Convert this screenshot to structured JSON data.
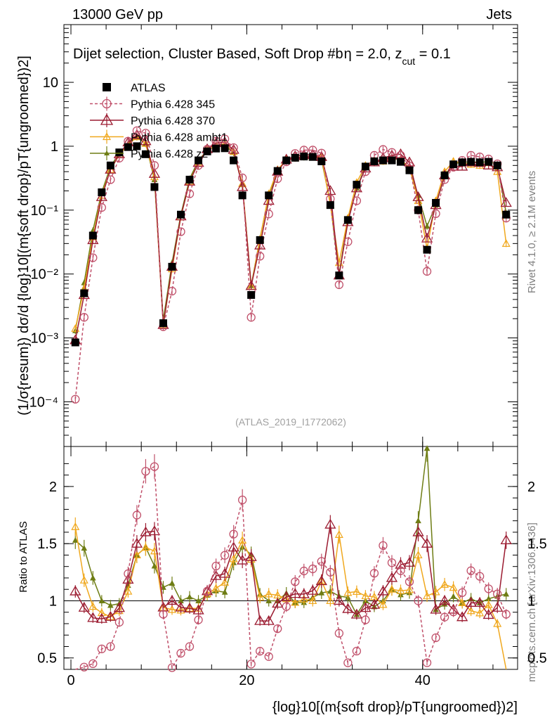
{
  "header": {
    "energy_label": "13000 GeV pp",
    "process_label": "Jets"
  },
  "side_labels": {
    "rivet": "Rivet 4.1.0, ≥ 2.1M events",
    "mcplots": "mcplots.cern.ch [arXiv:1306.3436]"
  },
  "chart_data": {
    "type": "line",
    "title": "Dijet selection, Cluster Based, Soft Drop #bη = 2.0, z_cut = 0.1",
    "title_main": "Dijet selection, Cluster Based, Soft Drop #b",
    "title_beta": "η = 2.0, z",
    "title_sub": "cut",
    "title_end": " = 0.1",
    "analysis_id": "(ATLAS_2019_I1772062)",
    "xlabel": "{log}10[(m{soft drop}/pT{ungroomed})2]",
    "ylabel": "(1/σ{resum}) dσ/d {log}10[(m{soft drop}/pT{ungroomed})2]",
    "ratio_ylabel": "Ratio to ATLAS",
    "main_yscale": "log",
    "main_ylim": [
      2e-05,
      80
    ],
    "main_yticks": [
      "10",
      "1",
      "10⁻¹",
      "10⁻²",
      "10⁻³",
      "10⁻⁴"
    ],
    "ratio_ylim": [
      0.4,
      2.35
    ],
    "ratio_yticks": [
      "2",
      "1.5",
      "1",
      "0.5"
    ],
    "xlim": [
      -0.8,
      50.8
    ],
    "xticks": [
      "0",
      "20",
      "40"
    ],
    "legend": [
      "ATLAS",
      "Pythia 6.428 345",
      "Pythia 6.428 370",
      "Pythia 6.428 ambt1",
      "Pythia 6.428 z2"
    ],
    "x": [
      0.5,
      1.5,
      2.5,
      3.5,
      4.5,
      5.5,
      6.5,
      7.5,
      8.5,
      9.5,
      10.5,
      11.5,
      12.5,
      13.5,
      14.5,
      15.5,
      16.5,
      17.5,
      18.5,
      19.5,
      20.5,
      21.5,
      22.5,
      23.5,
      24.5,
      25.5,
      26.5,
      27.5,
      28.5,
      29.5,
      30.5,
      31.5,
      32.5,
      33.5,
      34.5,
      35.5,
      36.5,
      37.5,
      38.5,
      39.5,
      40.5,
      41.5,
      42.5,
      43.5,
      44.5,
      45.5,
      46.5,
      47.5,
      48.5,
      49.5
    ],
    "series": [
      {
        "name": "ATLAS",
        "color": "#000000",
        "values": [
          0.00085,
          0.005,
          0.04,
          0.19,
          0.5,
          0.8,
          0.97,
          1.0,
          0.75,
          0.23,
          0.0017,
          0.013,
          0.085,
          0.3,
          0.6,
          0.83,
          0.92,
          0.93,
          0.6,
          0.17,
          0.0047,
          0.034,
          0.17,
          0.41,
          0.6,
          0.66,
          0.69,
          0.68,
          0.58,
          0.12,
          0.0095,
          0.07,
          0.25,
          0.48,
          0.58,
          0.6,
          0.6,
          0.57,
          0.42,
          0.1,
          0.024,
          0.13,
          0.35,
          0.52,
          0.56,
          0.57,
          0.56,
          0.57,
          0.5,
          0.085
        ]
      },
      {
        "name": "Pythia 6.428 345",
        "color": "#c0506a",
        "values": [
          0.00011,
          0.0021,
          0.018,
          0.11,
          0.3,
          0.65,
          1.2,
          1.75,
          1.6,
          0.5,
          0.0015,
          0.0054,
          0.046,
          0.18,
          0.5,
          0.9,
          1.2,
          1.3,
          0.95,
          0.32,
          0.0021,
          0.019,
          0.087,
          0.31,
          0.57,
          0.77,
          0.87,
          0.87,
          0.78,
          0.15,
          0.0068,
          0.032,
          0.14,
          0.4,
          0.72,
          0.89,
          0.8,
          0.72,
          0.49,
          0.1,
          0.011,
          0.088,
          0.3,
          0.47,
          0.6,
          0.72,
          0.68,
          0.63,
          0.53,
          0.075
        ]
      },
      {
        "name": "Pythia 6.428 370",
        "color": "#9b1b30",
        "values": [
          0.00092,
          0.0047,
          0.034,
          0.16,
          0.43,
          0.75,
          1.15,
          1.5,
          1.2,
          0.37,
          0.0016,
          0.013,
          0.08,
          0.28,
          0.55,
          0.9,
          1.12,
          1.15,
          0.88,
          0.23,
          0.0065,
          0.028,
          0.14,
          0.4,
          0.62,
          0.7,
          0.73,
          0.74,
          0.68,
          0.2,
          0.0095,
          0.065,
          0.22,
          0.45,
          0.56,
          0.65,
          0.72,
          0.75,
          0.56,
          0.16,
          0.036,
          0.12,
          0.35,
          0.48,
          0.48,
          0.56,
          0.55,
          0.5,
          0.47,
          0.13
        ]
      },
      {
        "name": "Pythia 6.428 ambt1",
        "color": "#f0a81e",
        "values": [
          0.0014,
          0.0059,
          0.038,
          0.17,
          0.43,
          0.73,
          1.05,
          1.4,
          1.1,
          0.33,
          0.0016,
          0.012,
          0.078,
          0.28,
          0.56,
          0.88,
          1.02,
          1.08,
          0.82,
          0.26,
          0.0064,
          0.035,
          0.18,
          0.43,
          0.61,
          0.65,
          0.7,
          0.68,
          0.68,
          0.12,
          0.015,
          0.075,
          0.27,
          0.5,
          0.6,
          0.58,
          0.66,
          0.62,
          0.46,
          0.14,
          0.025,
          0.14,
          0.4,
          0.58,
          0.55,
          0.52,
          0.5,
          0.55,
          0.4,
          0.03
        ]
      },
      {
        "name": "Pythia 6.428 z2",
        "color": "#6e7d14",
        "values": [
          0.0013,
          0.0073,
          0.048,
          0.19,
          0.48,
          0.78,
          1.1,
          1.4,
          1.1,
          0.3,
          0.0019,
          0.015,
          0.085,
          0.31,
          0.6,
          0.87,
          1.0,
          1.0,
          0.8,
          0.25,
          0.0066,
          0.036,
          0.17,
          0.41,
          0.64,
          0.65,
          0.68,
          0.7,
          0.62,
          0.13,
          0.0099,
          0.072,
          0.22,
          0.48,
          0.55,
          0.6,
          0.66,
          0.6,
          0.45,
          0.17,
          0.056,
          0.12,
          0.34,
          0.54,
          0.55,
          0.58,
          0.55,
          0.58,
          0.52,
          0.09
        ]
      }
    ]
  }
}
